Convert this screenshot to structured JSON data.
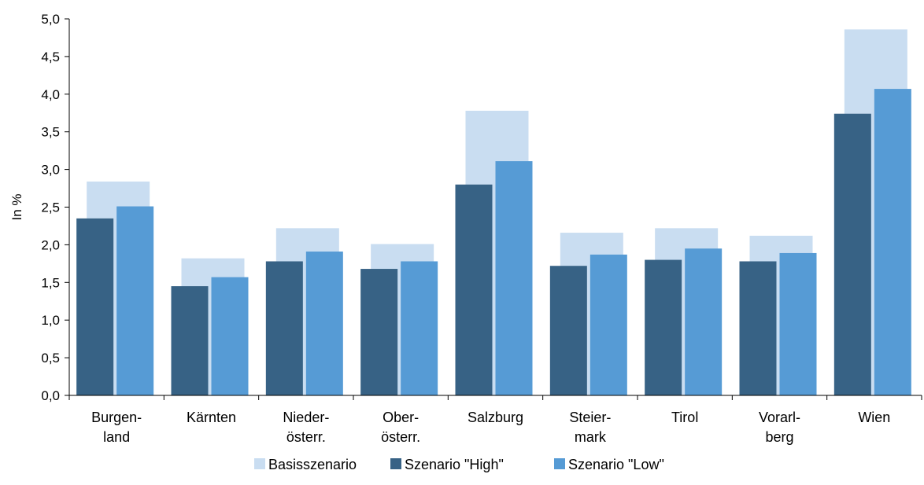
{
  "chart_data": {
    "type": "bar",
    "ylabel": "In %",
    "ylim": [
      0,
      5
    ],
    "ytick_step": 0.5,
    "ytick_labels": [
      "0,0",
      "0,5",
      "1,0",
      "1,5",
      "2,0",
      "2,5",
      "3,0",
      "3,5",
      "4,0",
      "4,5",
      "5,0"
    ],
    "categories": [
      [
        "Burgen-",
        "land"
      ],
      [
        "Kärnten"
      ],
      [
        "Nieder-",
        "österr."
      ],
      [
        "Ober-",
        "österr."
      ],
      [
        "Salzburg"
      ],
      [
        "Steier-",
        "mark"
      ],
      [
        "Tirol"
      ],
      [
        "Vorarl-",
        "berg"
      ],
      [
        "Wien"
      ]
    ],
    "series": [
      {
        "name": "Basisszenario",
        "color": "#c9ddf1",
        "values": [
          2.84,
          1.82,
          2.22,
          2.01,
          3.78,
          2.16,
          2.22,
          2.12,
          4.86
        ]
      },
      {
        "name": "Szenario \"High\"",
        "color": "#376285",
        "values": [
          2.35,
          1.45,
          1.78,
          1.68,
          2.8,
          1.72,
          1.8,
          1.78,
          3.74
        ]
      },
      {
        "name": "Szenario \"Low\"",
        "color": "#569bd5",
        "values": [
          2.51,
          1.57,
          1.91,
          1.78,
          3.11,
          1.87,
          1.95,
          1.89,
          4.07
        ]
      }
    ],
    "legend_position": "bottom-center",
    "grid": false
  }
}
